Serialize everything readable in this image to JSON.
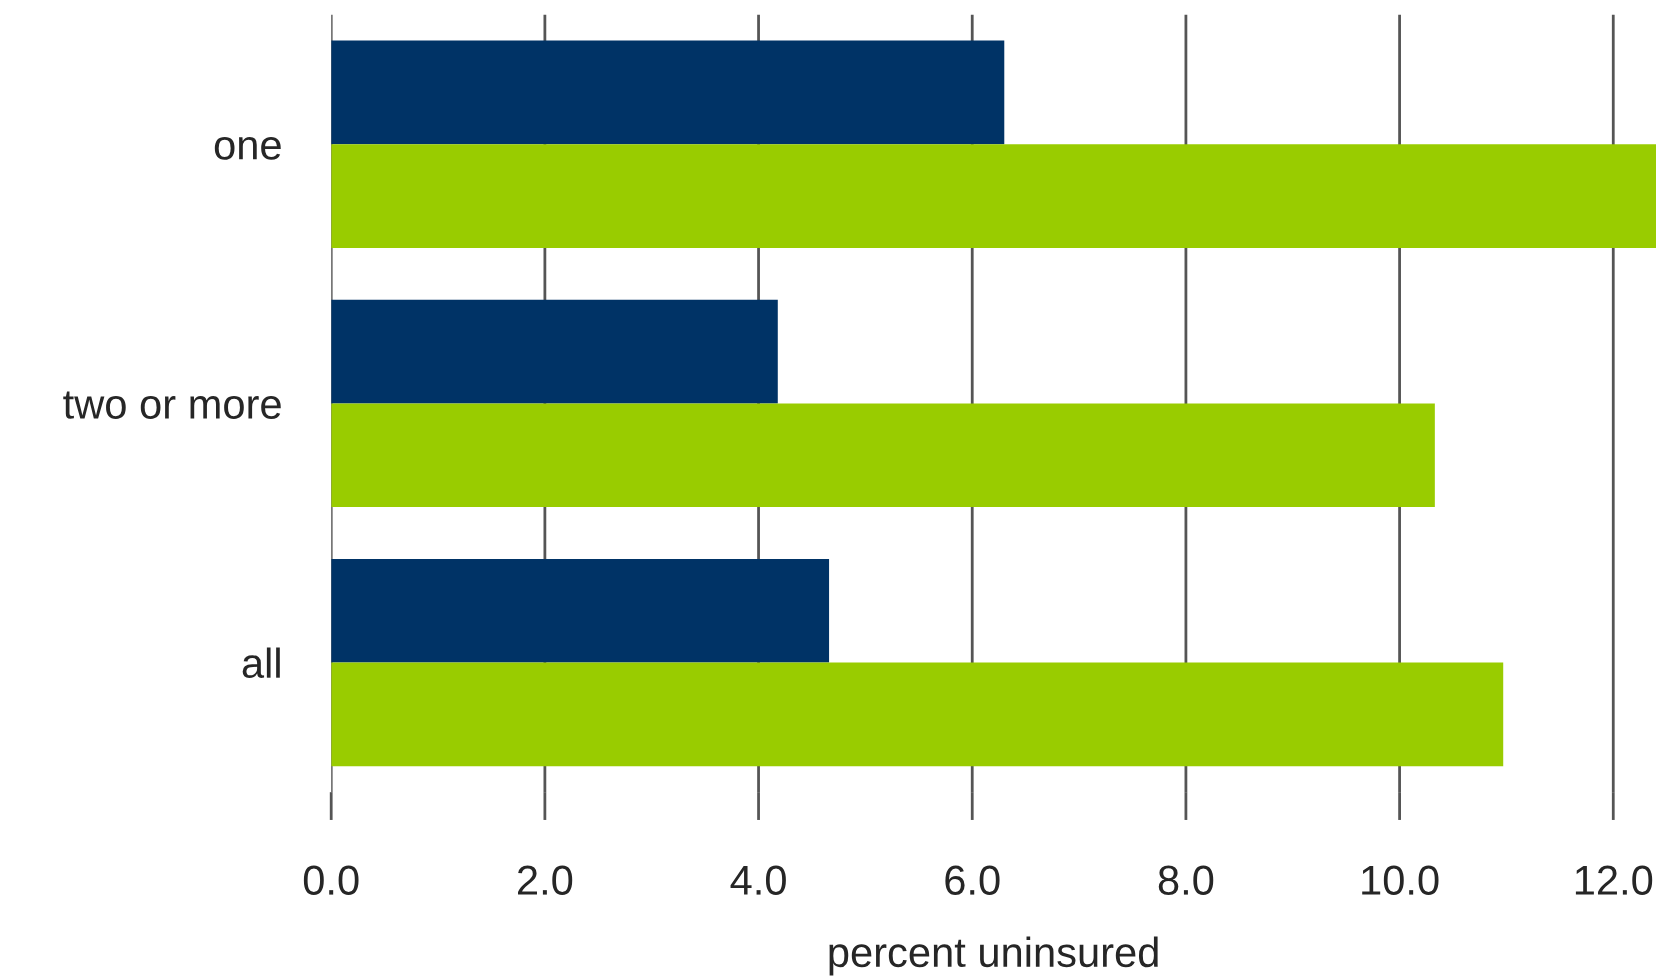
{
  "chart_data": {
    "type": "bar",
    "orientation": "horizontal",
    "xlabel": "percent uninsured",
    "categories": [
      "one",
      "two or more",
      "all"
    ],
    "series": [
      {
        "color": "#003366",
        "values": [
          6.3,
          4.18,
          4.66
        ]
      },
      {
        "color": "#99cc00",
        "values": [
          12.4,
          10.33,
          10.97
        ]
      }
    ],
    "xlim": [
      0,
      12.4
    ],
    "xticks": [
      {
        "value": 0,
        "label": "0.0"
      },
      {
        "value": 2,
        "label": "2.0"
      },
      {
        "value": 4,
        "label": "4.0"
      },
      {
        "value": 6,
        "label": "6.0"
      },
      {
        "value": 8,
        "label": "8.0"
      },
      {
        "value": 10,
        "label": "10.0"
      },
      {
        "value": 12,
        "label": "12.0"
      }
    ],
    "grid": "x",
    "legend": false
  }
}
